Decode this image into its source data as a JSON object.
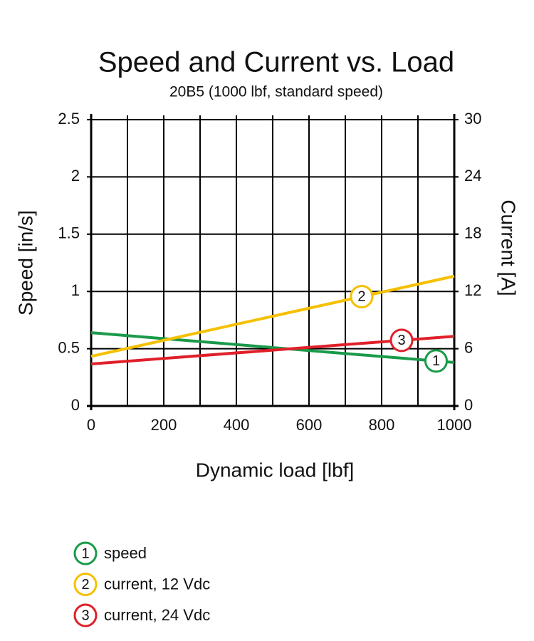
{
  "chart_data": {
    "type": "line",
    "title": "Speed and Current vs. Load",
    "subtitle": "20B5 (1000 lbf, standard speed)",
    "xlabel": "Dynamic load [lbf]",
    "ylabel": "Speed [in/s]",
    "y2label": "Current [A]",
    "x": [
      0,
      1000
    ],
    "xlim": [
      0,
      1000
    ],
    "xticks": [
      0,
      200,
      400,
      600,
      800,
      1000
    ],
    "x_minor_ticks": [
      100,
      300,
      500,
      700,
      900
    ],
    "ylim": [
      0,
      2.5
    ],
    "yticks": [
      0,
      0.5,
      1.0,
      1.5,
      2.0,
      2.5
    ],
    "y2lim": [
      0,
      30
    ],
    "y2ticks": [
      0,
      6,
      12,
      18,
      24,
      30
    ],
    "grid": true,
    "series": [
      {
        "name": "speed",
        "color": "#1a9a4a",
        "values": [
          0.64,
          0.38
        ],
        "marker_label": "1",
        "marker_x": 950
      },
      {
        "name": "current, 12 Vdc",
        "color": "#f5c000",
        "values": [
          5.2,
          13.6
        ],
        "axis": "y2",
        "marker_label": "2",
        "marker_x": 745
      },
      {
        "name": "current, 24 Vdc",
        "color": "#e0202a",
        "values": [
          4.4,
          7.3
        ],
        "axis": "y2",
        "marker_label": "3",
        "marker_x": 855
      }
    ]
  }
}
